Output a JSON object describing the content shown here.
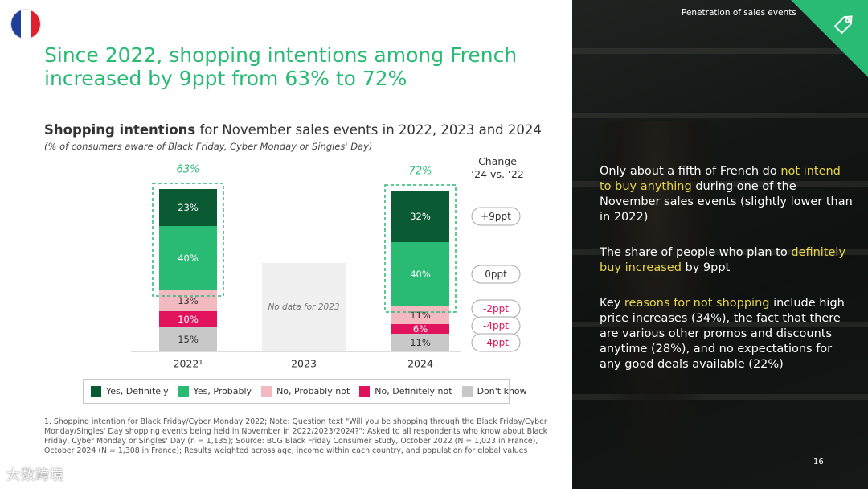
{
  "header": {
    "headline": "Since 2022, shopping intentions among French increased by 9ppt from 63% to 72%",
    "subhead_bold": "Shopping intentions",
    "subhead_rest": " for November sales events in 2022, 2023 and 2024",
    "subnote": "(% of consumers aware of Black Friday, Cyber Monday or Singles' Day)"
  },
  "flag": {
    "colors": [
      "#1f3f99",
      "#ffffff",
      "#e0202e"
    ]
  },
  "change_header": {
    "line1": "Change",
    "line2": "‘24 vs. ‘22"
  },
  "colors": {
    "yes_definitely": "#0a5a33",
    "yes_probably": "#29ba74",
    "no_probably_not": "#f3b9c1",
    "no_definitely_not": "#e0135c",
    "dont_know": "#c8c8c8",
    "accent": "#29ba74",
    "highlight": "#e8d44a"
  },
  "chart_data": {
    "type": "bar",
    "stacked": true,
    "categories": [
      "2022¹",
      "2023",
      "2024"
    ],
    "series": [
      {
        "name": "Yes, Definitely",
        "values": [
          23,
          null,
          32
        ]
      },
      {
        "name": "Yes, Probably",
        "values": [
          40,
          null,
          40
        ]
      },
      {
        "name": "No, Probably not",
        "values": [
          13,
          null,
          11
        ]
      },
      {
        "name": "No, Definitely not",
        "values": [
          10,
          null,
          6
        ]
      },
      {
        "name": "Don't know",
        "values": [
          15,
          null,
          11
        ]
      }
    ],
    "totals_yes": [
      "63%",
      "",
      "72%"
    ],
    "no_data_label": "No data for 2023",
    "changes": [
      {
        "label": "+9ppt",
        "series": "Yes, Definitely"
      },
      {
        "label": "0ppt",
        "series": "Yes, Probably"
      },
      {
        "label": "-2ppt",
        "series": "No, Probably not"
      },
      {
        "label": "-4ppt",
        "series": "No, Definitely not"
      },
      {
        "label": "-4ppt",
        "series": "Don't know"
      }
    ],
    "legend_placement": "bottom"
  },
  "footnote": "1. Shopping intention for Black Friday/Cyber Monday 2022; Note: Question text \"Will you be shopping through the Black Friday/Cyber Monday/Singles' Day shopping events being held in November in 2022/2023/2024?\"; Asked to all respondents who know about Black Friday, Cyber Monday or Singles' Day (n = 1,135); Source: BCG Black Friday Consumer Study, October 2022 (N = 1,023 in France), October 2024 (N = 1,308 in France); Results weighted across age, income within each country, and population for global values",
  "watermark": "大数跨境",
  "panel": {
    "section_label": "Penetration of sales events",
    "insight1_a": "Only about a fifth of French do ",
    "insight1_hl": "not intend to buy anything",
    "insight1_b": " during one of the November sales events (slightly lower than in 2022)",
    "insight2_a": "The share of people who plan to ",
    "insight2_hl": "definitely buy increased",
    "insight2_b": " by 9ppt",
    "insight3_a": "Key ",
    "insight3_hl": "reasons for not shopping",
    "insight3_b": " include high price increases (34%), the fact that there are various other promos and discounts anytime (28%), and no expectations for any good deals available (22%)",
    "page_number": "16"
  }
}
